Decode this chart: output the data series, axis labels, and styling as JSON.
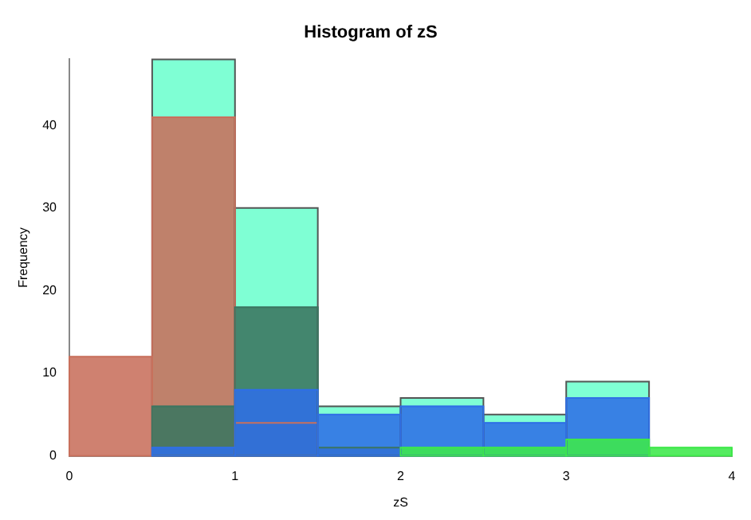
{
  "chart_data": {
    "type": "histogram",
    "title": "Histogram of zS",
    "xlabel": "zS",
    "ylabel": "Frequency",
    "bins": [
      0,
      0.5,
      1,
      1.5,
      2,
      2.5,
      3,
      3.5,
      4
    ],
    "series": [
      {
        "color": "#7fffd4",
        "values": [
          null,
          48,
          30,
          6,
          7,
          5,
          9,
          null
        ]
      },
      {
        "color": "#c8705c",
        "values": [
          12,
          41,
          4,
          0,
          0,
          0,
          0,
          0
        ]
      },
      {
        "color": "#3b7560",
        "values": [
          0,
          6,
          18,
          1,
          0,
          0,
          0,
          0
        ]
      },
      {
        "color": "#2f6fe6",
        "values": [
          0,
          1,
          8,
          5,
          6,
          4,
          7,
          0
        ]
      },
      {
        "color": "#3ee84a",
        "values": [
          0,
          0,
          0,
          0,
          1,
          1,
          2,
          1
        ]
      }
    ],
    "xlim": [
      0,
      4
    ],
    "ylim": [
      0,
      48
    ],
    "xticks": [
      0,
      1,
      2,
      3,
      4
    ],
    "yticks": [
      0,
      10,
      20,
      30,
      40
    ],
    "grid": false,
    "legend": false
  }
}
